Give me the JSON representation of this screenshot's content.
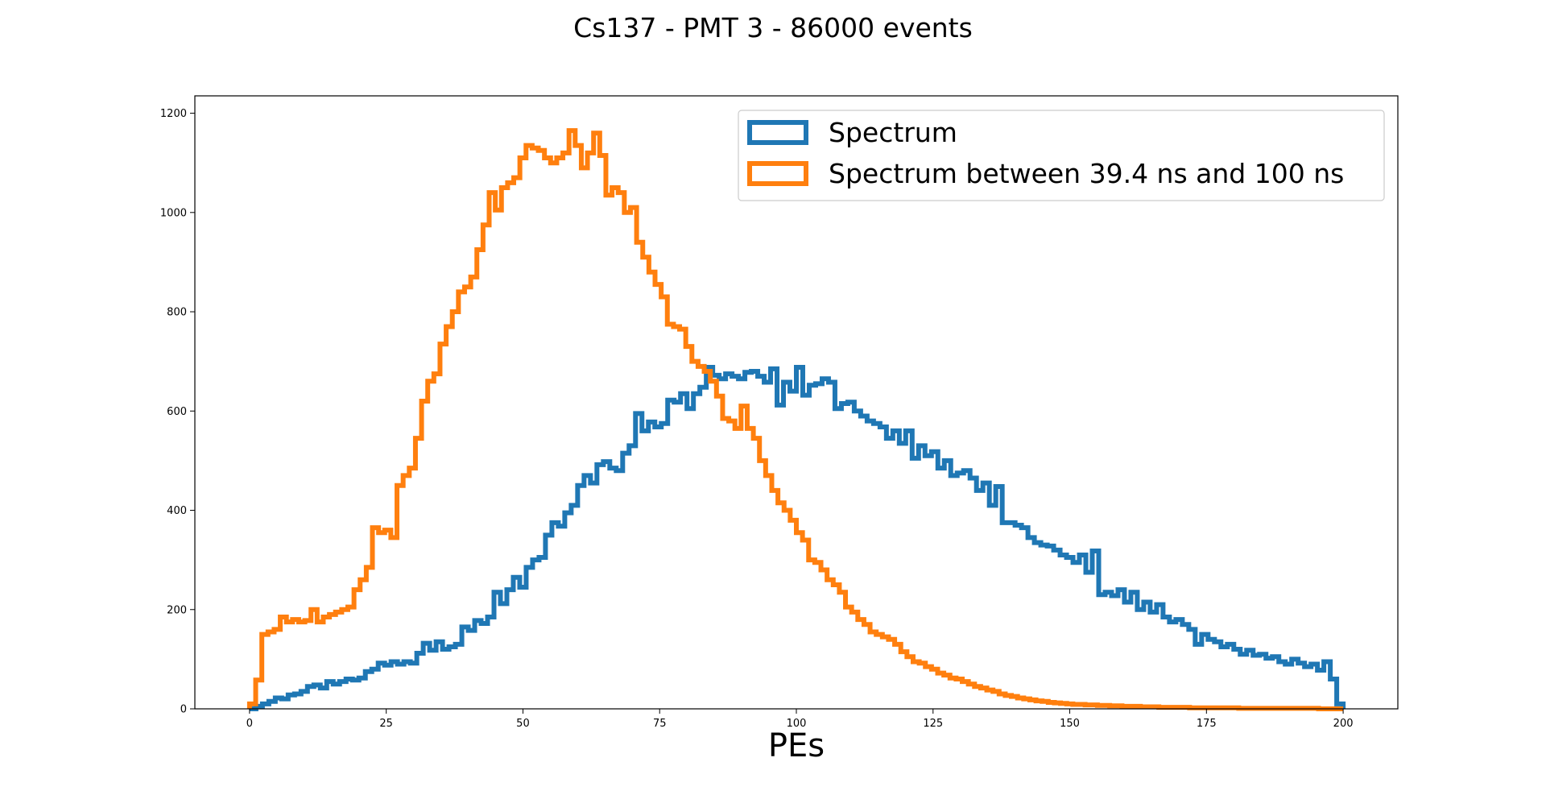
{
  "chart_data": {
    "type": "histogram",
    "title": "Cs137 - PMT 3 - 86000 events",
    "xlabel": "PEs",
    "ylabel": "",
    "xlim": [
      -10,
      210
    ],
    "ylim": [
      0,
      1235
    ],
    "grid": false,
    "legend_placement": "upper right",
    "x_ticks": [
      0,
      25,
      50,
      75,
      100,
      125,
      150,
      175,
      200
    ],
    "y_ticks": [
      0,
      200,
      400,
      600,
      800,
      1000,
      1200
    ],
    "bin_start": 0,
    "bin_end": 200,
    "series": [
      {
        "name": "Spectrum",
        "color": "#1f77b4",
        "values": [
          0,
          5,
          10,
          15,
          22,
          20,
          28,
          30,
          35,
          45,
          48,
          42,
          55,
          50,
          55,
          60,
          58,
          62,
          75,
          80,
          92,
          88,
          95,
          90,
          95,
          92,
          112,
          132,
          118,
          135,
          120,
          125,
          130,
          165,
          158,
          178,
          172,
          185,
          235,
          212,
          240,
          265,
          245,
          285,
          300,
          305,
          350,
          375,
          368,
          395,
          410,
          450,
          470,
          455,
          492,
          498,
          485,
          480,
          515,
          530,
          595,
          560,
          578,
          568,
          575,
          622,
          618,
          635,
          605,
          635,
          648,
          688,
          672,
          665,
          675,
          670,
          665,
          678,
          680,
          670,
          658,
          685,
          612,
          658,
          640,
          688,
          632,
          652,
          655,
          665,
          658,
          605,
          615,
          618,
          600,
          590,
          580,
          575,
          568,
          545,
          560,
          535,
          560,
          505,
          530,
          510,
          518,
          485,
          500,
          470,
          475,
          480,
          465,
          440,
          455,
          410,
          448,
          375,
          375,
          370,
          365,
          345,
          335,
          330,
          328,
          320,
          310,
          305,
          295,
          310,
          275,
          318,
          230,
          235,
          228,
          240,
          215,
          235,
          200,
          215,
          195,
          210,
          185,
          175,
          180,
          170,
          160,
          130,
          150,
          140,
          135,
          125,
          130,
          120,
          110,
          118,
          108,
          110,
          102,
          105,
          95,
          90,
          100,
          92,
          85,
          90,
          78,
          95,
          60,
          10
        ],
        "x_values_note": ""
      },
      {
        "name": "Spectrum between 39.4 ns and 100 ns",
        "color": "#ff7f0e",
        "values": [
          10,
          58,
          150,
          155,
          160,
          185,
          175,
          180,
          175,
          178,
          200,
          175,
          185,
          190,
          195,
          200,
          205,
          240,
          260,
          285,
          365,
          355,
          360,
          345,
          450,
          470,
          485,
          545,
          620,
          660,
          675,
          735,
          770,
          800,
          840,
          850,
          870,
          925,
          975,
          1040,
          1005,
          1050,
          1060,
          1070,
          1110,
          1135,
          1130,
          1125,
          1110,
          1100,
          1110,
          1120,
          1165,
          1135,
          1090,
          1120,
          1160,
          1115,
          1035,
          1050,
          1040,
          1000,
          1010,
          940,
          910,
          880,
          855,
          830,
          775,
          770,
          765,
          730,
          700,
          690,
          680,
          660,
          630,
          585,
          580,
          565,
          610,
          565,
          545,
          500,
          470,
          440,
          415,
          400,
          380,
          355,
          340,
          300,
          295,
          280,
          260,
          250,
          235,
          205,
          195,
          180,
          170,
          155,
          150,
          145,
          140,
          130,
          115,
          105,
          95,
          92,
          85,
          80,
          72,
          68,
          62,
          60,
          55,
          50,
          45,
          42,
          38,
          35,
          30,
          27,
          25,
          22,
          20,
          18,
          16,
          15,
          13,
          12,
          11,
          10,
          9,
          9,
          8,
          8,
          7,
          7,
          6,
          6,
          5,
          5,
          5,
          4,
          4,
          4,
          3,
          3,
          3,
          3,
          3,
          2,
          2,
          2,
          2,
          2,
          2,
          2,
          2,
          1,
          1,
          1,
          1,
          1,
          1,
          1,
          1,
          1,
          1,
          1,
          1,
          1,
          0,
          0,
          0,
          0
        ]
      }
    ]
  }
}
